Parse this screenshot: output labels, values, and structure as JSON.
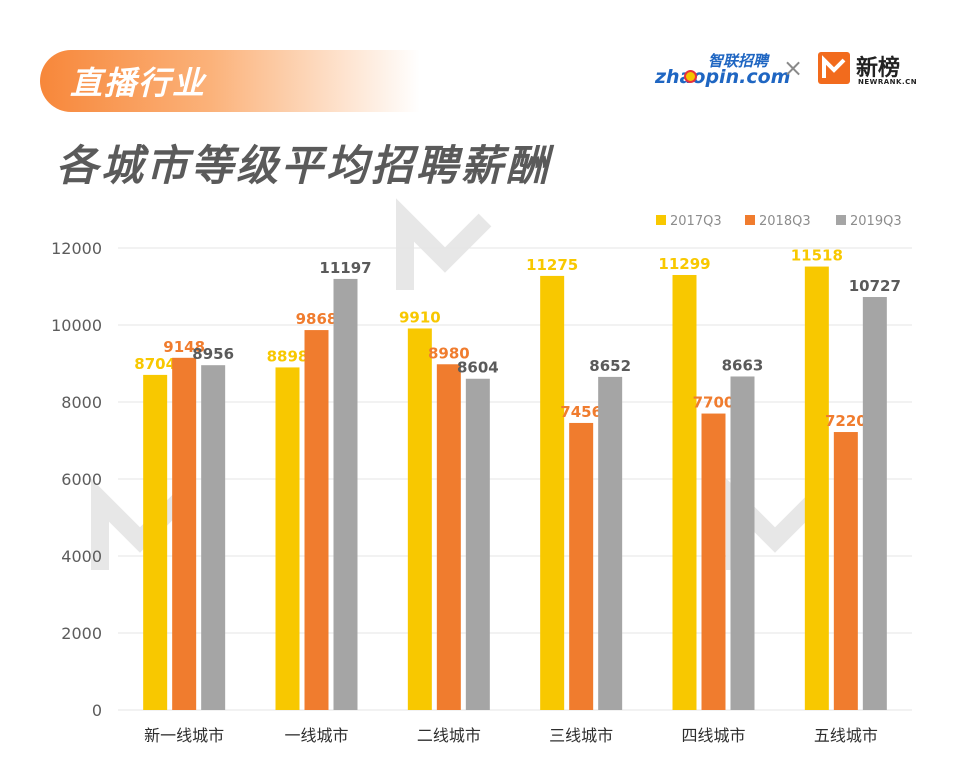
{
  "header": {
    "tag": "直播行业",
    "title": "各城市等级平均招聘薪酬"
  },
  "logos": {
    "zhaopin_cn": "智联招聘",
    "zhaopin_en": "zhaopin.com",
    "separator": "×",
    "newrank_cn": "新榜",
    "newrank_en": "NEWRANK.CN"
  },
  "colors": {
    "series_2017": "#f8c800",
    "series_2018": "#f07c2e",
    "series_2019": "#a5a5a5",
    "grid": "#e6e6e6"
  },
  "chart_data": {
    "type": "bar",
    "categories": [
      "新一线城市",
      "一线城市",
      "二线城市",
      "三线城市",
      "四线城市",
      "五线城市"
    ],
    "series": [
      {
        "name": "2017Q3",
        "values": [
          8704,
          8898,
          9910,
          11275,
          11299,
          11518
        ]
      },
      {
        "name": "2018Q3",
        "values": [
          9148,
          9868,
          8980,
          7456,
          7700,
          7220
        ]
      },
      {
        "name": "2019Q3",
        "values": [
          8956,
          11197,
          8604,
          8652,
          8663,
          10727
        ]
      }
    ],
    "ylim": [
      0,
      12000
    ],
    "yticks": [
      0,
      2000,
      4000,
      6000,
      8000,
      10000,
      12000
    ],
    "grid": true,
    "legend_position": "top-right",
    "data_labels": true
  }
}
